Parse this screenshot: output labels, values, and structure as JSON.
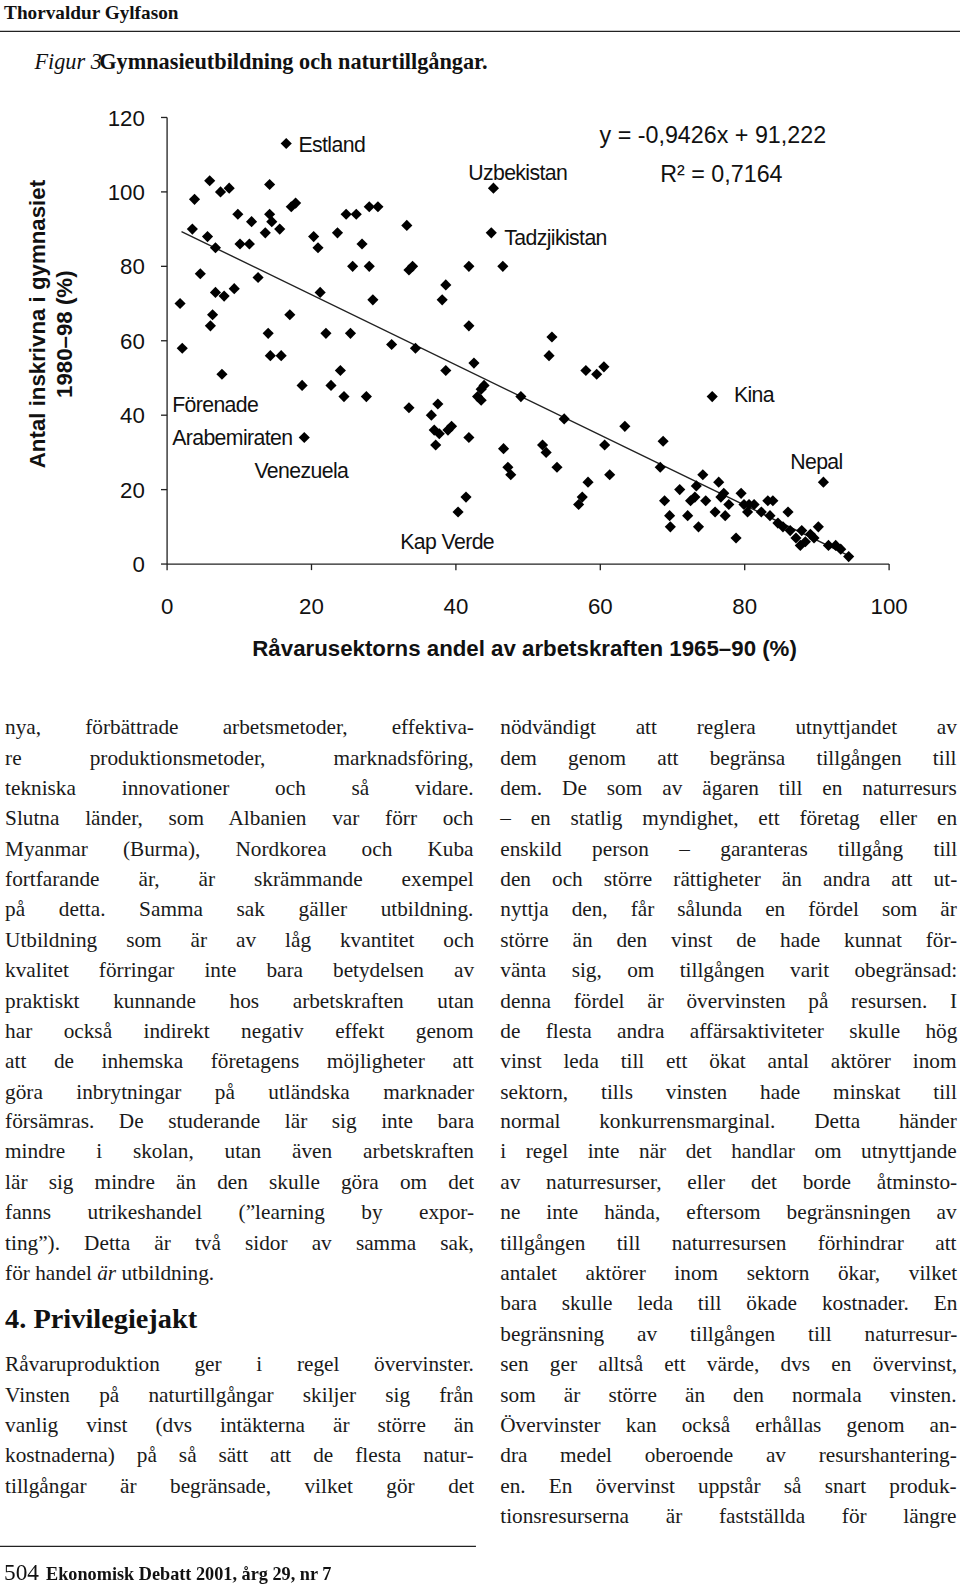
{
  "header": {
    "author": "Thorvaldur Gylfason"
  },
  "figure": {
    "label": "Figur 3",
    "title": "Gymnasieutbildning och naturtillgångar."
  },
  "chart_data": {
    "type": "scatter",
    "xlabel": "Råvarusektorns andel av arbetskraften 1965–90 (%)",
    "ylabel": [
      "Antal inskrivna i gymnasiet",
      "1980–98 (%)"
    ],
    "xlim": [
      0,
      100
    ],
    "ylim": [
      0,
      120
    ],
    "xticks": [
      0,
      20,
      40,
      60,
      80,
      100
    ],
    "yticks": [
      0,
      20,
      40,
      60,
      80,
      100,
      120
    ],
    "grid": false,
    "marker": "diamond",
    "color": "#000000",
    "x": [
      1.8,
      2.1,
      3.5,
      3.8,
      4.6,
      5.6,
      5.9,
      6.3,
      6,
      6.7,
      6.7,
      7.4,
      7.6,
      7.9,
      8.6,
      9.3,
      9.8,
      10.1,
      11.4,
      11.7,
      12.6,
      13.6,
      14.2,
      14.2,
      14.5,
      14,
      14.3,
      15.8,
      15.6,
      16.5,
      17.2,
      17.8,
      17,
      18.7,
      19,
      20.3,
      20.9,
      21.2,
      22,
      22.7,
      23.6,
      24,
      24.5,
      24.8,
      26.2,
      27,
      25.7,
      25.4,
      28,
      28,
      28.5,
      29.2,
      27.6,
      31.1,
      33.2,
      33.5,
      33.5,
      34,
      34.4,
      36.6,
      37,
      37.2,
      37.5,
      37.7,
      38.1,
      38.6,
      38.6,
      38.9,
      39.4,
      40.3,
      41.4,
      41.8,
      41.8,
      41.8,
      42.5,
      43,
      43.5,
      43.9,
      43.5,
      45.2,
      44.9,
      46.5,
      46.6,
      47.2,
      47.6,
      49,
      52,
      52.5,
      52.9,
      53.3,
      54,
      55,
      57,
      57.5,
      58,
      58.3,
      59.5,
      60.5,
      60.6,
      61.3,
      63.4,
      68.3,
      68.7,
      68.9,
      69.6,
      69.7,
      71,
      72.1,
      72.5,
      73.1,
      73.3,
      73.6,
      74.2,
      74.6,
      75.5,
      75.9,
      76.4,
      76.7,
      77.1,
      77.3,
      77.8,
      78.8,
      79.5,
      79.9,
      80.4,
      80.6,
      81.3,
      82.3,
      83.2,
      83.5,
      83.9,
      84.6,
      85.3,
      86,
      86.3,
      87.1,
      87.7,
      87.9,
      88.4,
      89.1,
      89.6,
      90.2,
      90.9,
      91.6,
      92.6,
      93.3,
      94.4
    ],
    "values": [
      70,
      58,
      90,
      98,
      78,
      88,
      103,
      67,
      64,
      85,
      73,
      100,
      51,
      72,
      101,
      74,
      94,
      86,
      86,
      92,
      77,
      89,
      102,
      94,
      92,
      62,
      56,
      56,
      90,
      113,
      96,
      97,
      67,
      48,
      34,
      88,
      85,
      73,
      62,
      48,
      89,
      52,
      45,
      94,
      94,
      86,
      80,
      62,
      96,
      80,
      71,
      96,
      45,
      59,
      91,
      79,
      42,
      80,
      58,
      40,
      36,
      32,
      43,
      35,
      71,
      75,
      52,
      36,
      37,
      14,
      18,
      80,
      64,
      34,
      54,
      45,
      47,
      48,
      44,
      101,
      89,
      80,
      31,
      26,
      24,
      45,
      32,
      30,
      56,
      61,
      26,
      39,
      16,
      18,
      52,
      22,
      51,
      53,
      32,
      24,
      37,
      26,
      33,
      17,
      13,
      10,
      20,
      13,
      17,
      18,
      21,
      10,
      24,
      17,
      45,
      14,
      22,
      18,
      19,
      13,
      16,
      7,
      19,
      16,
      14,
      16,
      16,
      14,
      17,
      13,
      17,
      11,
      10,
      14,
      9,
      7,
      5,
      9,
      6,
      8,
      7,
      10,
      22,
      5,
      5,
      4,
      2
    ],
    "trendline": {
      "slope": -0.9426,
      "intercept": 91.222,
      "x_range": [
        2,
        94.4
      ]
    },
    "annotations": [
      {
        "text": "y = -0,9426x + 91,222",
        "x": 59.9,
        "y": 115.4
      },
      {
        "text": "R² = 0,7164",
        "x": 68.3,
        "y": 104.8
      },
      {
        "text": "Estland",
        "x": 18.2,
        "y": 112.7
      },
      {
        "text": "Uzbekistan",
        "x": 41.7,
        "y": 105
      },
      {
        "text": "Tadzjikistan",
        "x": 46.7,
        "y": 87.6
      },
      {
        "text": "Kina",
        "x": 78.5,
        "y": 45.4
      },
      {
        "text": "Nepal",
        "x": 86.3,
        "y": 27.5
      },
      {
        "text": "Förenade",
        "x": 0.7,
        "y": 42.7
      },
      {
        "text": "Arabemiraten",
        "x": 0.7,
        "y": 34
      },
      {
        "text": "Venezuela",
        "x": 12.1,
        "y": 25
      },
      {
        "text": "Kap Verde",
        "x": 32.3,
        "y": 6
      }
    ]
  },
  "body": {
    "left": [
      {
        "lines": [
          "nya, förbättrade arbetsmetoder, effektiva-",
          "re produktionsmetoder, marknadsföring,",
          "tekniska innovationer och så vidare.",
          "Slutna länder, som Albanien var förr och",
          "Myanmar (Burma), Nordkorea och Kuba",
          "fortfarande är, är skrämmande exempel",
          "på detta. Samma sak gäller utbildning.",
          "Utbildning som är av låg kvantitet och",
          "kvalitet förringar inte bara betydelsen av",
          "praktiskt kunnande hos arbetskraften utan",
          "har också indirekt negativ effekt genom",
          "att de inhemska företagens möjligheter att",
          "göra inbrytningar på utländska marknader",
          "försämras. De studerande lär sig inte bara",
          "mindre i skolan, utan även arbetskraften",
          "lär sig mindre än den skulle göra om det",
          "fanns utrikeshandel (”learning by expor-",
          "ting”). Detta är två sidor av samma sak,",
          [
            {
              "text": "för handel "
            },
            {
              "text": "är",
              "emphasis": true
            },
            {
              "text": " utbildning."
            }
          ]
        ]
      },
      {
        "heading": "4. Privilegiejakt"
      },
      {
        "lines": [
          "Råvaruproduktion ger i regel övervinster.",
          "Vinsten på naturtillgångar skiljer sig från",
          "vanlig vinst (dvs intäkterna är större än",
          "kostnaderna) på så sätt att de flesta natur-",
          "tillgångar är begränsade, vilket gör det"
        ]
      }
    ],
    "right": [
      {
        "lines": [
          "nödvändigt att reglera utnyttjandet av",
          "dem genom att begränsa tillgången till",
          "dem. De som av ägaren till en naturresurs",
          "– en statlig myndighet, ett företag eller en",
          "enskild person – garanteras tillgång till",
          "den och större rättigheter än andra att ut-",
          "nyttja den, får sålunda en fördel som är",
          "större än den vinst de hade kunnat för-",
          "vänta sig, om tillgången varit obegränsad:",
          "denna fördel är övervinsten på resursen. I",
          "de flesta andra affärsaktiviteter skulle hög",
          "vinst leda till ett ökat antal aktörer inom",
          "sektorn, tills vinsten hade minskat till",
          "normal konkurrensmarginal. Detta händer",
          "i regel inte när det handlar om utnyttjande",
          "av naturresurser, eller det borde åtminsto-",
          "ne inte hända, eftersom begränsningen av",
          "tillgången till naturresursen förhindrar att",
          "antalet aktörer inom sektorn ökar, vilket",
          "bara skulle leda till ökade kostnader. En",
          "begränsning av tillgången till naturresur-",
          "sen ger alltså ett värde, dvs en övervinst,",
          "som är större än den normala vinsten.",
          "Övervinster kan också erhållas genom an-",
          "dra medel oberoende av resurshantering-",
          "en. En övervinst uppstår så snart produk-",
          "tionsresurserna är fastställda för längre"
        ]
      }
    ]
  },
  "footer": {
    "page": "504",
    "journal": "Ekonomisk Debatt 2001, årg 29, nr 7"
  }
}
